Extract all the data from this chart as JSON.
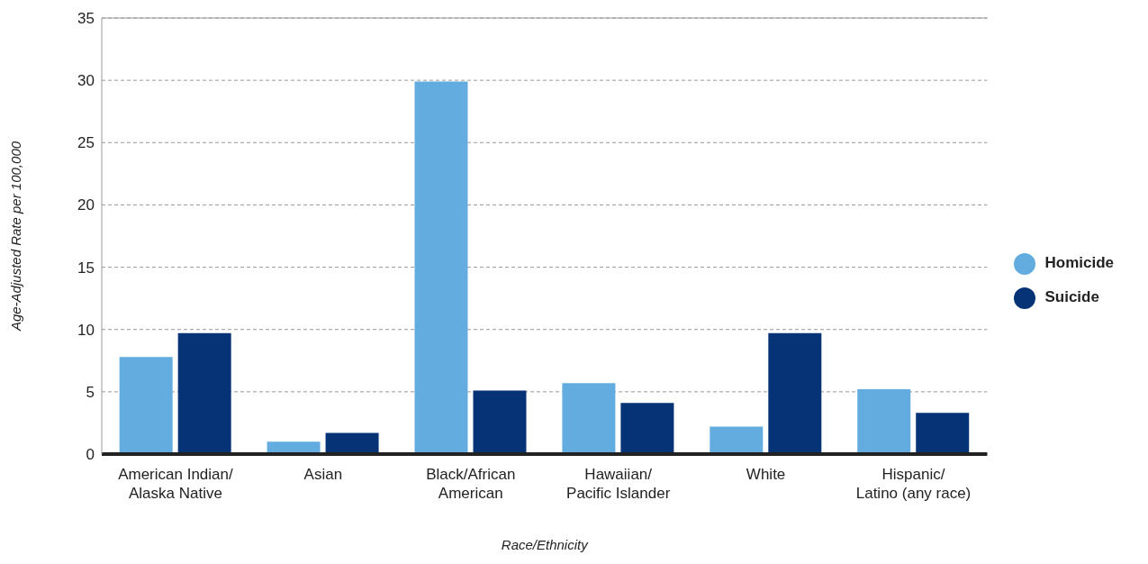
{
  "chart_data": {
    "type": "bar",
    "xlabel": "Race/Ethnicity",
    "ylabel": "Age-Adjusted Rate per 100,000",
    "categories": [
      "American Indian/\nAlaska Native",
      "Asian",
      "Black/African\nAmerican",
      "Hawaiian/\nPacific Islander",
      "White",
      "Hispanic/\nLatino (any race)"
    ],
    "series": [
      {
        "name": "Homicide",
        "color": "#63acdf",
        "values": [
          7.8,
          1.0,
          29.9,
          5.7,
          2.2,
          5.2
        ]
      },
      {
        "name": "Suicide",
        "color": "#053375",
        "values": [
          9.7,
          1.7,
          5.1,
          4.1,
          9.7,
          3.3
        ]
      }
    ],
    "ylim": [
      0,
      35
    ],
    "yticks": [
      0,
      5,
      10,
      15,
      20,
      25,
      30,
      35
    ],
    "grid": "y",
    "legend": "right"
  }
}
